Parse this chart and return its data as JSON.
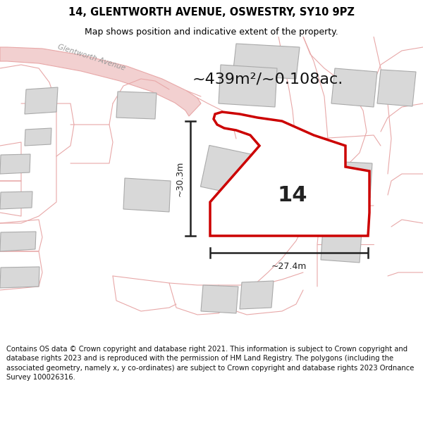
{
  "title": "14, GLENTWORTH AVENUE, OSWESTRY, SY10 9PZ",
  "subtitle": "Map shows position and indicative extent of the property.",
  "area_label": "~439m²/~0.108ac.",
  "number_label": "14",
  "width_label": "~27.4m",
  "height_label": "~30.3m",
  "footer": "Contains OS data © Crown copyright and database right 2021. This information is subject to Crown copyright and database rights 2023 and is reproduced with the permission of HM Land Registry. The polygons (including the associated geometry, namely x, y co-ordinates) are subject to Crown copyright and database rights 2023 Ordnance Survey 100026316.",
  "bg_color": "#f7f7f7",
  "road_fill": "#f2d0d0",
  "road_edge": "#e8a8a8",
  "plot_edge": "#cc0000",
  "plot_fill": "#ffffff",
  "building_fill": "#d8d8d8",
  "building_edge": "#aaaaaa",
  "plot_line_color": "#e0a0a0",
  "street_color": "#999999",
  "dim_color": "#222222",
  "footer_text_color": "#111111"
}
